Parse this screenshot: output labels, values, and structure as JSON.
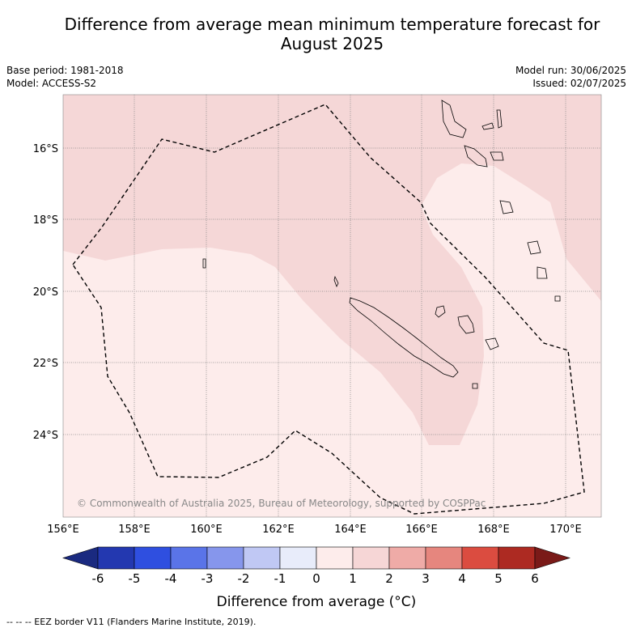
{
  "title_line1": "Difference from average mean minimum temperature forecast for",
  "title_line2": "August 2025",
  "base_period": "Base period: 1981-2018",
  "model": "Model: ACCESS-S2",
  "model_run": "Model run: 30/06/2025",
  "issued": "Issued: 02/07/2025",
  "copyright": "© Commonwealth of Australia 2025, Bureau of Meteorology, supported by COSPPac",
  "lat_labels": [
    "16°S",
    "18°S",
    "20°S",
    "22°S",
    "24°S"
  ],
  "lon_labels": [
    "156°E",
    "158°E",
    "160°E",
    "162°E",
    "164°E",
    "166°E",
    "168°E",
    "170°E"
  ],
  "colorbar": {
    "ticks": [
      "-6",
      "-5",
      "-4",
      "-3",
      "-2",
      "-1",
      "0",
      "1",
      "2",
      "3",
      "4",
      "5",
      "6"
    ],
    "colors": [
      "#1a2a80",
      "#2338b0",
      "#2f4fe0",
      "#5a74e8",
      "#8696ec",
      "#c0c8f4",
      "#e8ecfa",
      "#fdeceb",
      "#f6d6d6",
      "#efaba7",
      "#e6867e",
      "#db4c40",
      "#ad2a22",
      "#7a1a18"
    ],
    "label": "Difference from average (°C)"
  },
  "map_colors": {
    "anomaly_0_1": "#fdeceb",
    "anomaly_1_2": "#f5d7d7",
    "grid": "#888888",
    "coast": "#000000"
  },
  "footer": "--  --  -- EEZ border V11 (Flanders Marine Institute, 2019)."
}
